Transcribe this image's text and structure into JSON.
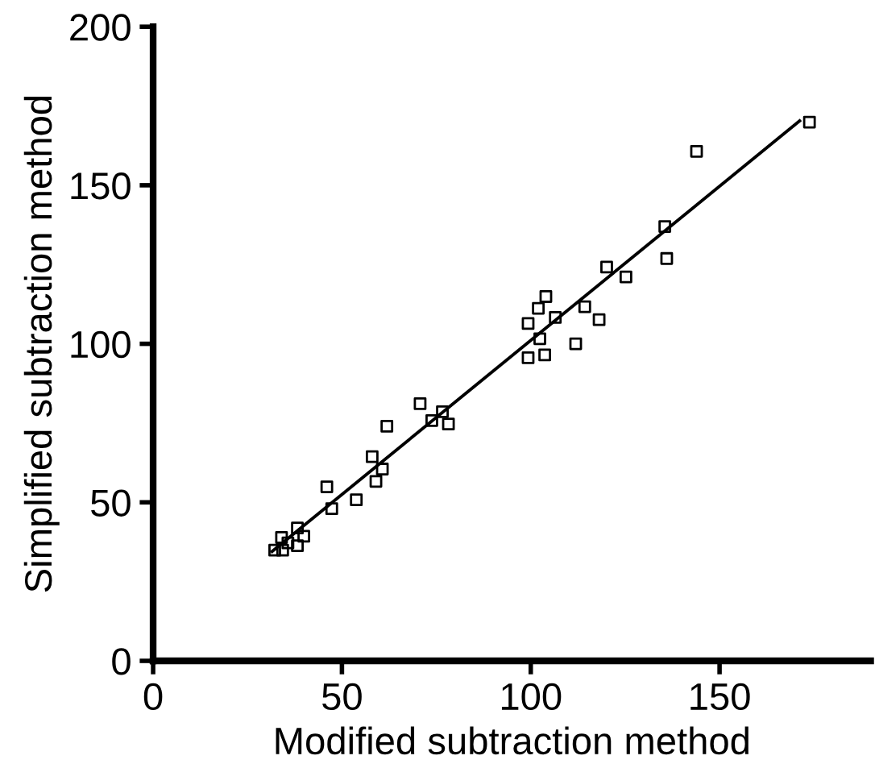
{
  "chart_data": {
    "type": "scatter",
    "xlabel": "Modified subtraction method",
    "ylabel": "Simplified subtraction method",
    "xlim": [
      0,
      190
    ],
    "ylim": [
      0,
      200
    ],
    "xticks": [
      0,
      50,
      100,
      150
    ],
    "yticks": [
      0,
      50,
      100,
      150,
      200
    ],
    "grid": false,
    "legend": false,
    "marker": "square",
    "series": [
      {
        "color": "#000000",
        "x": [
          32.2,
          34.3,
          34.0,
          35.7,
          38.2,
          38.2,
          39.9,
          46.0,
          47.3,
          53.8,
          58.0,
          59.0,
          60.7,
          61.9,
          70.7,
          73.8,
          76.6,
          78.2,
          99.3,
          99.3,
          102.0,
          104.0,
          102.4,
          103.7,
          106.5,
          111.9,
          114.3,
          118.1,
          120.1,
          125.2,
          135.5,
          136.0,
          143.9,
          173.8
        ],
        "values": [
          34.9,
          34.9,
          38.9,
          37.2,
          36.3,
          41.9,
          39.3,
          54.9,
          48.0,
          50.8,
          64.4,
          56.6,
          60.5,
          74.0,
          81.1,
          75.8,
          78.6,
          74.7,
          106.4,
          95.6,
          111.2,
          114.9,
          101.6,
          96.5,
          108.3,
          100.0,
          111.7,
          107.6,
          124.2,
          121.1,
          137.0,
          126.9,
          160.7,
          169.9
        ]
      },
      {
        "type": "line",
        "color": "#000000",
        "marker": "none",
        "x": [
          31.5,
          171.2
        ],
        "values": [
          34.5,
          170.3
        ]
      }
    ]
  }
}
